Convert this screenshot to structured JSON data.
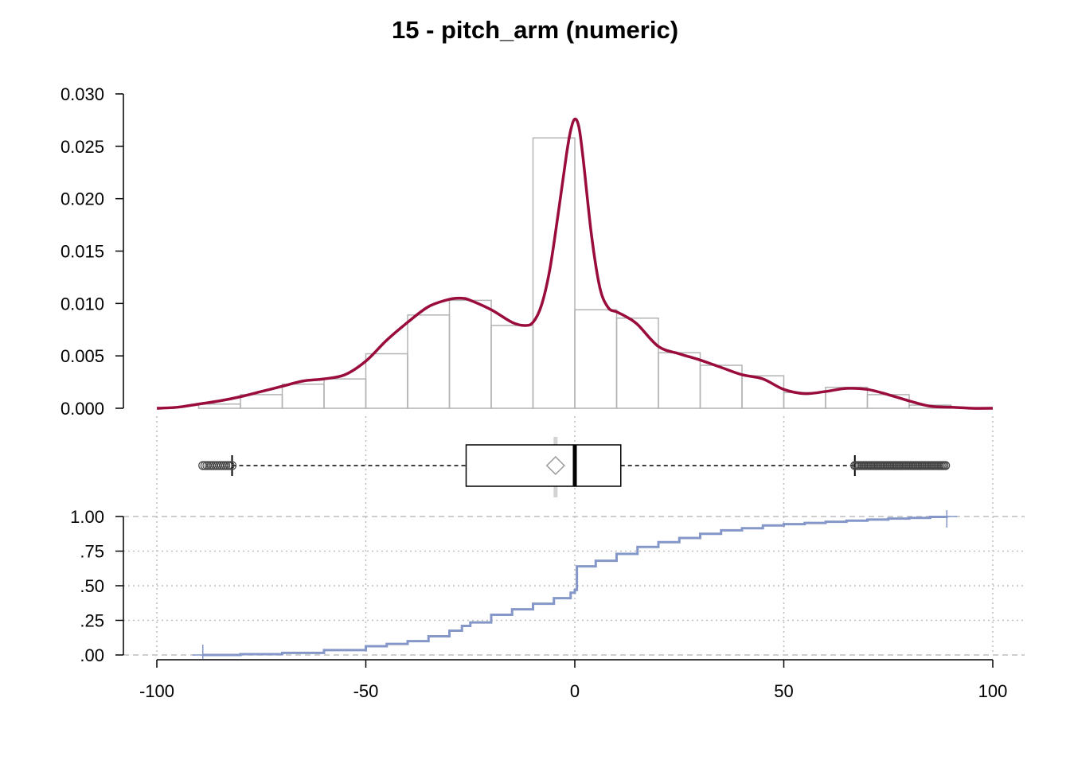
{
  "title": "15 - pitch_arm (numeric)",
  "colors": {
    "density": "#990C3C",
    "ecdf": "#8497C8",
    "hist_border": "#B3B3B3",
    "grid": "#BEBEBE"
  },
  "chart_data": [
    {
      "type": "bar",
      "subtype": "histogram",
      "x_bin_edges": [
        -90,
        -80,
        -70,
        -60,
        -50,
        -40,
        -30,
        -20,
        -10,
        0,
        10,
        20,
        30,
        40,
        50,
        60,
        70,
        80,
        90
      ],
      "values": [
        0.0004,
        0.0013,
        0.0023,
        0.0028,
        0.0052,
        0.0089,
        0.0103,
        0.0079,
        0.0258,
        0.0094,
        0.0086,
        0.0053,
        0.0041,
        0.0031,
        0.0015,
        0.002,
        0.0013,
        0.0003
      ],
      "xlim": [
        -100,
        100
      ],
      "ylim": [
        0,
        0.03
      ],
      "yticks": [
        "0.000",
        "0.005",
        "0.010",
        "0.015",
        "0.020",
        "0.025",
        "0.030"
      ],
      "yticks_values": [
        0,
        0.005,
        0.01,
        0.015,
        0.02,
        0.025,
        0.03
      ],
      "density": {
        "x": [
          -100,
          -95,
          -90,
          -85,
          -80,
          -75,
          -70,
          -65,
          -60,
          -55,
          -50,
          -45,
          -40,
          -35,
          -30,
          -27,
          -25,
          -20,
          -15,
          -12,
          -10,
          -8,
          -6,
          -4,
          -2,
          -1,
          0,
          1,
          2,
          4,
          6,
          8,
          10,
          12,
          15,
          20,
          25,
          30,
          35,
          40,
          45,
          50,
          55,
          60,
          65,
          70,
          75,
          80,
          85,
          90,
          95,
          100
        ],
        "y": [
          0.0,
          0.0001,
          0.0004,
          0.0007,
          0.0011,
          0.0016,
          0.0021,
          0.0026,
          0.0028,
          0.0032,
          0.0045,
          0.0065,
          0.0082,
          0.0097,
          0.0104,
          0.0105,
          0.0103,
          0.0094,
          0.0082,
          0.0079,
          0.0082,
          0.0098,
          0.0132,
          0.0185,
          0.0242,
          0.0265,
          0.0276,
          0.0268,
          0.0238,
          0.0165,
          0.0115,
          0.0096,
          0.0092,
          0.0088,
          0.008,
          0.0059,
          0.0052,
          0.0046,
          0.0039,
          0.0032,
          0.0028,
          0.0018,
          0.0014,
          0.0016,
          0.0019,
          0.0018,
          0.0013,
          0.0007,
          0.0002,
          0.0001,
          0.0,
          0.0
        ]
      }
    },
    {
      "type": "box",
      "min_whisker": -82,
      "q1": -26,
      "median": 0,
      "q3": 11,
      "max_whisker": 67,
      "mean": -4.6,
      "outliers_low_range": [
        -89,
        -82
      ],
      "outliers_high_range": [
        67,
        89
      ]
    },
    {
      "type": "line",
      "subtype": "ecdf",
      "x": [
        -89,
        -80,
        -70,
        -60,
        -50,
        -45,
        -40,
        -35,
        -30,
        -27,
        -25,
        -20,
        -15,
        -10,
        -5,
        -1,
        0,
        0.5,
        5,
        10,
        15,
        20,
        25,
        30,
        35,
        40,
        45,
        50,
        55,
        60,
        65,
        70,
        75,
        80,
        85,
        89
      ],
      "y": [
        0.0,
        0.006,
        0.015,
        0.035,
        0.063,
        0.08,
        0.1,
        0.135,
        0.175,
        0.21,
        0.235,
        0.29,
        0.33,
        0.37,
        0.41,
        0.45,
        0.47,
        0.64,
        0.68,
        0.73,
        0.78,
        0.815,
        0.845,
        0.875,
        0.9,
        0.915,
        0.935,
        0.945,
        0.953,
        0.962,
        0.97,
        0.978,
        0.985,
        0.99,
        0.997,
        1.0
      ],
      "yticks": [
        "1.00",
        ".75",
        ".50",
        ".25",
        ".00"
      ],
      "yticks_values": [
        1,
        0.75,
        0.5,
        0.25,
        0
      ],
      "xticks": [
        "-100",
        "-50",
        "0",
        "50",
        "100"
      ],
      "xticks_values": [
        -100,
        -50,
        0,
        50,
        100
      ],
      "xlim": [
        -100,
        100
      ],
      "ylim": [
        0,
        1
      ]
    }
  ]
}
